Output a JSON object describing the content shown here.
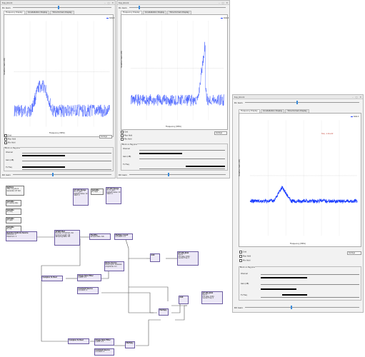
{
  "windows": [
    {
      "title": "top_block",
      "ctrl_label": "Rx Gain",
      "tabs": [
        "Frequency Display",
        "Constellation Display",
        "Time Domain Display"
      ],
      "ylabel": "Relative Gain (dB)",
      "xlabel": "Frequency (MHz)",
      "legend": "Data 0",
      "checks": [
        "Grid",
        "Max Hold",
        "Min Hold"
      ],
      "avg_label": "Average",
      "group_title": "Block on Tag pins",
      "rows": [
        "Channel",
        "Gain (dB)",
        "Tx Freq"
      ],
      "bottom_label": "RX Gain"
    },
    {
      "title": "top_block",
      "ctrl_label": "Rx Gain",
      "tabs": [
        "Frequency Display",
        "Constellation Display",
        "Time Domain Display"
      ],
      "ylabel": "Relative Gain (dB)",
      "xlabel": "Frequency (MHz)",
      "legend": "Data 0",
      "checks": [
        "Grid",
        "Max Hold",
        "Min Hold"
      ],
      "avg_label": "Average",
      "group_title": "Block on Tag pins",
      "rows": [
        "Channel",
        "Gain (dB)",
        "Tx Freq"
      ],
      "bottom_label": "RX Gain"
    },
    {
      "title": "top_block",
      "ctrl_label": "Rx Gain",
      "tabs": [
        "Frequency Display",
        "Constellation Display",
        "Time Domain Display"
      ],
      "ylabel": "Relative Gain (dB)",
      "xlabel": "Frequency (MHz)",
      "legend": "Data 0",
      "marker": "freq: -1.11e-02",
      "checks": [
        "Grid",
        "Max Hold",
        "Min Hold"
      ],
      "avg_label": "Average",
      "group_title": "Block on Tag pins",
      "rows": [
        "Channel",
        "Gain (dB)",
        "Tx Freq"
      ],
      "bottom_label": "RX Gain"
    }
  ],
  "flowgraph": {
    "blocks": [
      {
        "id": "options",
        "title": "Options",
        "lines": [
          "Title: top_block",
          "Generate: QT GUI"
        ]
      },
      {
        "id": "variable1",
        "title": "Variable",
        "lines": [
          "ID: samp_rate",
          "Value: 32k"
        ]
      },
      {
        "id": "variable2",
        "title": "Variable",
        "lines": [
          "ID: freq",
          "Value: 2.4G"
        ]
      },
      {
        "id": "variable3",
        "title": "Variable",
        "lines": [
          "ID: gain",
          "Value: 0"
        ]
      },
      {
        "id": "variable4",
        "title": "Variable",
        "lines": [
          "ID: bw",
          "Value: 1M"
        ]
      },
      {
        "id": "range1",
        "title": "QT GUI Range",
        "lines": [
          "ID: rx_gain",
          "Default Value: 10",
          "Start: 0",
          "Stop: 70",
          "Step: 1"
        ]
      },
      {
        "id": "range2",
        "title": "QT GUI Range",
        "lines": [
          "ID: tx_gain",
          "Default Value: 10",
          "Start: 0",
          "Stop: 70",
          "Step: 1"
        ]
      },
      {
        "id": "variable5",
        "title": "Variable",
        "lines": [
          "ID: taps",
          "Value: 0"
        ]
      },
      {
        "id": "source",
        "title": "Random Uniform Source",
        "lines": [
          "Minimum: 0",
          "Maximum: 2",
          "Seed: 0"
        ]
      },
      {
        "id": "ofdm",
        "title": "OFDM Mod",
        "lines": [
          "Number of Carriers: 64",
          "Symbol Length: 80",
          "Sampling Rate: 1M"
        ]
      },
      {
        "id": "throttle",
        "title": "Throttle",
        "lines": [
          "Sample Rate: 32k"
        ]
      },
      {
        "id": "multconst",
        "title": "Multiply Const",
        "lines": [
          "Constant: 0.1"
        ]
      },
      {
        "id": "noise",
        "title": "Noise Source",
        "lines": [
          "Noise Type: Gaussian",
          "Amplitude: 0.1"
        ]
      },
      {
        "id": "add",
        "title": "Add",
        "lines": []
      },
      {
        "id": "sink1",
        "title": "QT GUI Sink",
        "lines": [
          "Name: \"\"",
          "FFT Size: 1024",
          "Center Freq: 0",
          "Bandwidth: 32k"
        ]
      },
      {
        "id": "c2r1",
        "title": "Complex to Real",
        "lines": []
      },
      {
        "id": "sse1",
        "title": "Single Side Filter",
        "lines": [
          "Cutoff: 0.5"
        ]
      },
      {
        "id": "consta",
        "title": "Constant Source",
        "lines": [
          "Constant: 0"
        ]
      },
      {
        "id": "c2r2",
        "title": "Complex to Real",
        "lines": []
      },
      {
        "id": "sse2",
        "title": "Single Side Filter",
        "lines": [
          "Cutoff: 0.5"
        ]
      },
      {
        "id": "constb",
        "title": "Constant Source",
        "lines": [
          "Constant: 0"
        ]
      },
      {
        "id": "mult1",
        "title": "Multiply",
        "lines": []
      },
      {
        "id": "mult2",
        "title": "Multiply",
        "lines": []
      },
      {
        "id": "add2",
        "title": "Add",
        "lines": []
      },
      {
        "id": "sink2",
        "title": "QT GUI Sink",
        "lines": [
          "Name: \"\"",
          "FFT Size: 1024",
          "Center Freq: 0"
        ]
      }
    ]
  },
  "colors": {
    "trace": "#1a3cff",
    "block_border": "#6a5aa0",
    "knob": "#3b8bd9"
  }
}
